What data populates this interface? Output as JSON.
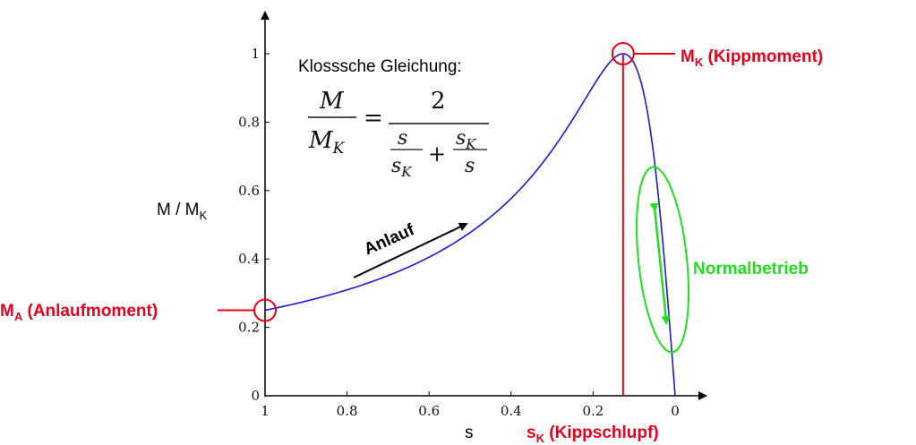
{
  "chart_data": {
    "type": "line",
    "xlabel": "s",
    "ylabel_main": "M / M",
    "ylabel_sub": "K",
    "x_reversed": true,
    "xlim": [
      1,
      0
    ],
    "ylim": [
      0,
      1
    ],
    "x_ticks": [
      "1",
      "0.8",
      "0.6",
      "0.4",
      "0.2",
      "0"
    ],
    "y_ticks": [
      "0",
      "0.2",
      "0.4",
      "0.6",
      "0.8",
      "1"
    ],
    "series": [
      {
        "color": "#1a1acc",
        "equation": "M/MK = 2 / (s/sK + sK/s)",
        "sK": 0.127
      }
    ],
    "equation_title": "Klosssche Gleichung:",
    "equation": {
      "lhs_num": "M",
      "lhs_den": "M",
      "lhs_den_sub": "K",
      "equals": "=",
      "rhs_num": "2",
      "t1_num": "s",
      "t1_den": "s",
      "t1_den_sub": "K",
      "plus": "+",
      "t2_num": "s",
      "t2_num_sub": "K",
      "t2_den": "s"
    },
    "annotations": {
      "kipp_label": "M",
      "kipp_sub": "K",
      "kipp_text": " (Kippmoment)",
      "anlauf_label": "M",
      "anlauf_sub": "A",
      "anlauf_text": " (Anlaufmoment)",
      "sk_label": "s",
      "sk_sub": "K",
      "sk_text": " (Kippschlupf)",
      "anlauf_arrow_text": "Anlauf",
      "normal_text": "Normalbetrieb"
    },
    "colors": {
      "curve": "#1a1acc",
      "red": "#e8001c",
      "green": "#22dd22"
    }
  }
}
